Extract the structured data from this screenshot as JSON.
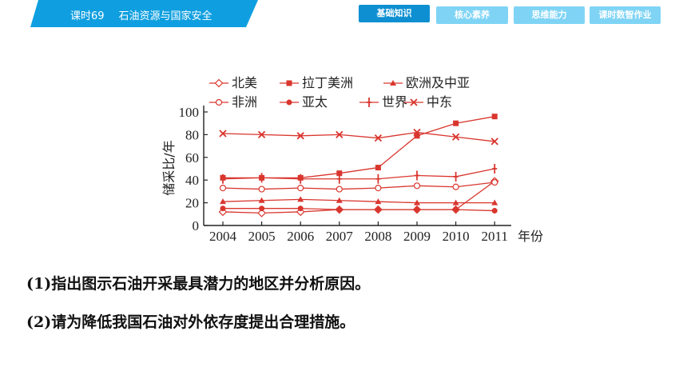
{
  "header": {
    "lesson_number": "课时69",
    "lesson_title": "石油资源与国家安全",
    "nav": [
      {
        "label": "基础知识",
        "active": true
      },
      {
        "label": "核心素养",
        "active": false
      },
      {
        "label": "思维能力",
        "active": false
      },
      {
        "label": "课时数智作业",
        "active": false
      }
    ],
    "colors": {
      "tab": "#0f9fe0",
      "active": "#0d8fd1",
      "inactive": "#7fd4f5"
    }
  },
  "chart_data": {
    "type": "line",
    "title": "",
    "xlabel": "年份",
    "ylabel": "储采比/年",
    "x": [
      "2004",
      "2005",
      "2006",
      "2007",
      "2008",
      "2009",
      "2010",
      "2011"
    ],
    "ylim": [
      0,
      100
    ],
    "yticks": [
      "0",
      "20",
      "40",
      "60",
      "80",
      "100"
    ],
    "grid": false,
    "legend_position": "top",
    "color": "#d9362e",
    "series": [
      {
        "name": "北美",
        "marker": "open-diamond",
        "values": [
          12,
          11,
          12,
          14,
          14,
          14,
          14,
          39
        ]
      },
      {
        "name": "拉丁美洲",
        "marker": "filled-square",
        "values": [
          42,
          42,
          42,
          46,
          51,
          79,
          90,
          96
        ]
      },
      {
        "name": "欧洲及中亚",
        "marker": "filled-triangle",
        "values": [
          21,
          22,
          23,
          22,
          21,
          20,
          20,
          20
        ]
      },
      {
        "name": "非洲",
        "marker": "open-circle",
        "values": [
          33,
          32,
          33,
          32,
          33,
          35,
          34,
          38
        ]
      },
      {
        "name": "亚太",
        "marker": "filled-circle",
        "values": [
          15,
          15,
          15,
          14,
          14,
          14,
          14,
          13
        ]
      },
      {
        "name": "世界",
        "marker": "plus",
        "values": [
          41,
          42,
          41,
          41,
          41,
          44,
          43,
          50
        ]
      },
      {
        "name": "中东",
        "marker": "x",
        "values": [
          81,
          80,
          79,
          80,
          77,
          82,
          78,
          74
        ]
      }
    ]
  },
  "questions": [
    "(1)指出图示石油开采最具潜力的地区并分析原因。",
    "(2)请为降低我国石油对外依存度提出合理措施。"
  ]
}
